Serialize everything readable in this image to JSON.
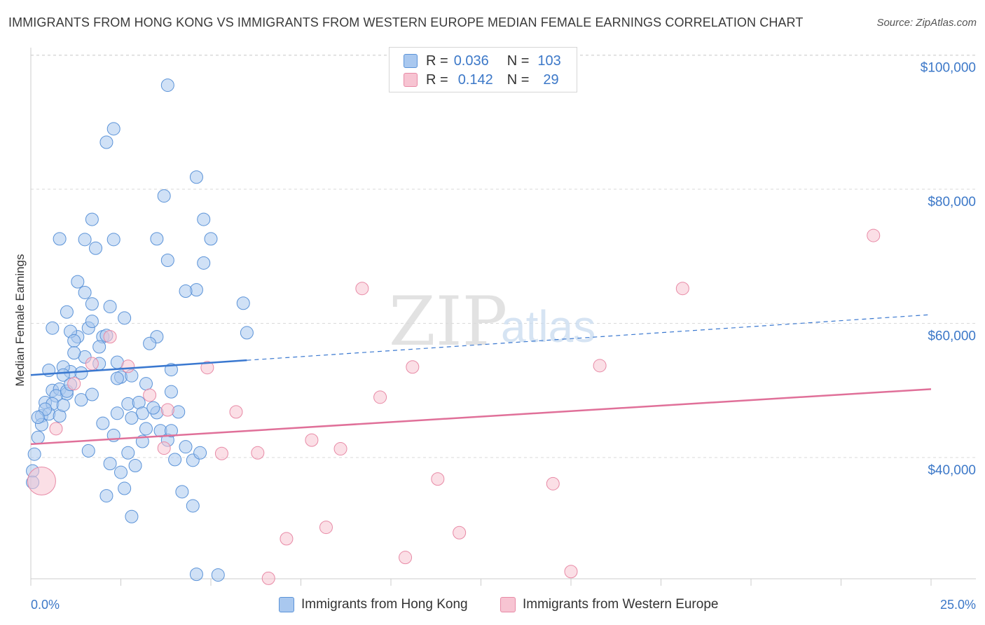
{
  "title": "IMMIGRANTS FROM HONG KONG VS IMMIGRANTS FROM WESTERN EUROPE MEDIAN FEMALE EARNINGS CORRELATION CHART",
  "source": "Source: ZipAtlas.com",
  "watermark": {
    "zip": "ZIP",
    "atlas": "atlas"
  },
  "legend": {
    "rows": [
      {
        "r_label": "R =",
        "r_value": "0.036",
        "n_label": "N =",
        "n_value": "103",
        "color": "#a9c8ef",
        "border": "#5b93d8"
      },
      {
        "r_label": "R =",
        "r_value": "0.142",
        "n_label": "N =",
        "n_value": "29",
        "color": "#f7c4d2",
        "border": "#e88aa6"
      }
    ]
  },
  "bottom_legend": {
    "series1": "Immigrants from Hong Kong",
    "series2": "Immigrants from Western Europe"
  },
  "chart_data": {
    "type": "scatter",
    "title": "IMMIGRANTS FROM HONG KONG VS IMMIGRANTS FROM WESTERN EUROPE MEDIAN FEMALE EARNINGS CORRELATION CHART",
    "xlabel": "",
    "ylabel": "Median Female Earnings",
    "xlim": [
      0,
      25
    ],
    "ylim": [
      21000,
      104000
    ],
    "x_tick_labels": [
      "0.0%",
      "25.0%"
    ],
    "y_ticks": [
      40000,
      60000,
      80000,
      100000
    ],
    "y_tick_labels": [
      "$40,000",
      "$60,000",
      "$80,000",
      "$100,000"
    ],
    "grid": true,
    "series": [
      {
        "name": "Immigrants from Hong Kong",
        "color": "#5b93d8",
        "fill": "#a9c8ef",
        "R": 0.036,
        "N": 103,
        "trend": {
          "x": [
            0,
            6
          ],
          "y": [
            52300,
            54500
          ],
          "solid_to": 6,
          "dashed_to": 25,
          "y_at_25": 61300
        },
        "points": [
          [
            0.5,
            53.0
          ],
          [
            0.6,
            50.0
          ],
          [
            0.4,
            48.2
          ],
          [
            0.3,
            46.2
          ],
          [
            0.2,
            43.0
          ],
          [
            0.1,
            40.5
          ],
          [
            0.05,
            38.0
          ],
          [
            0.05,
            36.3
          ],
          [
            0.8,
            50.2
          ],
          [
            1.0,
            49.5
          ],
          [
            1.1,
            52.8
          ],
          [
            1.5,
            55.0
          ],
          [
            1.3,
            58.0
          ],
          [
            1.1,
            58.8
          ],
          [
            0.9,
            53.5
          ],
          [
            0.7,
            49.2
          ],
          [
            0.6,
            48.0
          ],
          [
            0.5,
            46.5
          ],
          [
            0.8,
            46.2
          ],
          [
            0.9,
            47.8
          ],
          [
            1.0,
            49.9
          ],
          [
            1.2,
            57.4
          ],
          [
            1.6,
            59.3
          ],
          [
            1.7,
            60.3
          ],
          [
            1.5,
            64.6
          ],
          [
            1.7,
            62.9
          ],
          [
            1.3,
            66.2
          ],
          [
            1.8,
            71.2
          ],
          [
            2.2,
            62.5
          ],
          [
            2.0,
            58.0
          ],
          [
            1.9,
            54.0
          ],
          [
            2.4,
            54.2
          ],
          [
            2.5,
            52.0
          ],
          [
            2.7,
            48.0
          ],
          [
            2.4,
            46.6
          ],
          [
            2.3,
            43.3
          ],
          [
            2.7,
            40.7
          ],
          [
            2.2,
            39.1
          ],
          [
            2.5,
            37.8
          ],
          [
            2.6,
            35.4
          ],
          [
            2.1,
            34.3
          ],
          [
            2.8,
            31.2
          ],
          [
            3.0,
            48.2
          ],
          [
            3.1,
            46.6
          ],
          [
            3.2,
            44.3
          ],
          [
            3.1,
            42.4
          ],
          [
            3.5,
            46.7
          ],
          [
            3.6,
            44.0
          ],
          [
            3.8,
            42.6
          ],
          [
            3.9,
            44.0
          ],
          [
            3.9,
            49.8
          ],
          [
            4.1,
            46.8
          ],
          [
            4.3,
            41.6
          ],
          [
            4.5,
            39.6
          ],
          [
            4.0,
            39.7
          ],
          [
            4.2,
            34.9
          ],
          [
            4.5,
            32.8
          ],
          [
            1.7,
            75.5
          ],
          [
            1.5,
            72.5
          ],
          [
            2.3,
            72.5
          ],
          [
            0.8,
            72.6
          ],
          [
            2.1,
            87.0
          ],
          [
            2.3,
            89.0
          ],
          [
            3.7,
            79.0
          ],
          [
            4.6,
            65.0
          ],
          [
            5.0,
            72.6
          ],
          [
            4.8,
            69.0
          ],
          [
            3.8,
            69.4
          ],
          [
            4.3,
            64.8
          ],
          [
            4.8,
            75.5
          ],
          [
            4.6,
            81.8
          ],
          [
            3.5,
            72.6
          ],
          [
            6.0,
            58.6
          ],
          [
            5.9,
            63.0
          ],
          [
            3.5,
            58.0
          ],
          [
            2.8,
            52.2
          ],
          [
            2.4,
            51.8
          ],
          [
            1.4,
            52.6
          ],
          [
            3.2,
            51.0
          ],
          [
            4.7,
            40.7
          ],
          [
            4.6,
            22.6
          ],
          [
            5.2,
            22.5
          ],
          [
            3.8,
            95.5
          ],
          [
            2.1,
            58.2
          ],
          [
            1.4,
            48.6
          ],
          [
            1.7,
            49.4
          ],
          [
            0.9,
            52.3
          ],
          [
            0.4,
            47.2
          ],
          [
            0.3,
            44.9
          ],
          [
            2.0,
            45.1
          ],
          [
            1.6,
            41.0
          ],
          [
            2.9,
            38.8
          ],
          [
            3.4,
            47.4
          ],
          [
            3.9,
            53.1
          ],
          [
            1.2,
            55.6
          ],
          [
            0.6,
            59.3
          ],
          [
            1.0,
            61.7
          ],
          [
            2.6,
            60.8
          ],
          [
            1.9,
            56.5
          ],
          [
            3.3,
            57.0
          ],
          [
            1.1,
            50.9
          ],
          [
            2.8,
            45.9
          ],
          [
            0.2,
            46.0
          ]
        ]
      },
      {
        "name": "Immigrants from Western Europe",
        "color": "#e88aa6",
        "fill": "#f7c4d2",
        "R": 0.142,
        "N": 29,
        "trend": {
          "x": [
            0,
            25
          ],
          "y": [
            42000,
            50200
          ]
        },
        "points": [
          [
            0.3,
            36.5
          ],
          [
            0.7,
            44.3
          ],
          [
            1.2,
            51.0
          ],
          [
            1.7,
            54.0
          ],
          [
            2.2,
            58.0
          ],
          [
            2.7,
            53.6
          ],
          [
            3.3,
            49.3
          ],
          [
            3.7,
            41.4
          ],
          [
            3.8,
            47.1
          ],
          [
            4.9,
            53.4
          ],
          [
            5.3,
            40.6
          ],
          [
            5.7,
            46.8
          ],
          [
            6.3,
            40.7
          ],
          [
            6.6,
            22.0
          ],
          [
            7.1,
            27.9
          ],
          [
            7.8,
            42.6
          ],
          [
            8.2,
            29.6
          ],
          [
            8.6,
            41.3
          ],
          [
            9.2,
            65.2
          ],
          [
            9.7,
            49.0
          ],
          [
            10.4,
            25.1
          ],
          [
            10.6,
            53.5
          ],
          [
            11.3,
            36.8
          ],
          [
            11.9,
            28.8
          ],
          [
            14.5,
            36.1
          ],
          [
            15.0,
            23.0
          ],
          [
            15.8,
            53.7
          ],
          [
            18.1,
            65.2
          ],
          [
            23.4,
            73.1
          ]
        ]
      }
    ]
  }
}
